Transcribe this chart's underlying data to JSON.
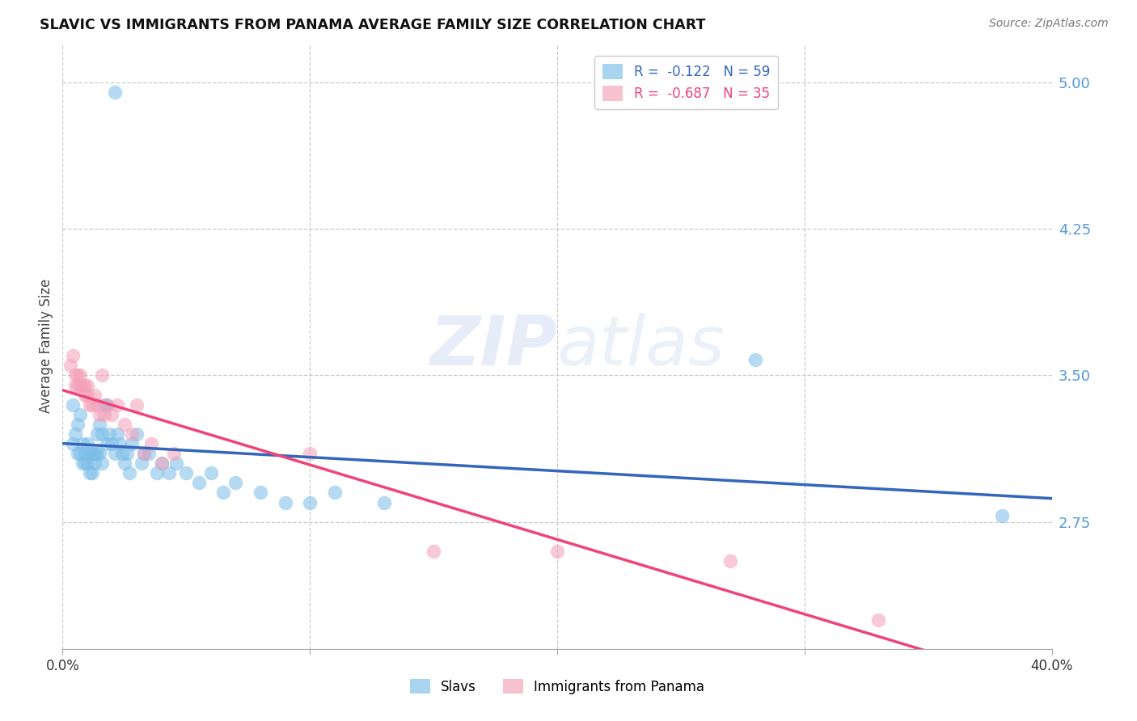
{
  "title": "SLAVIC VS IMMIGRANTS FROM PANAMA AVERAGE FAMILY SIZE CORRELATION CHART",
  "source": "Source: ZipAtlas.com",
  "ylabel": "Average Family Size",
  "yticks": [
    2.75,
    3.5,
    4.25,
    5.0
  ],
  "xtick_positions": [
    0.0,
    0.1,
    0.2,
    0.3,
    0.4
  ],
  "xmin": 0.0,
  "xmax": 0.4,
  "ymin": 2.1,
  "ymax": 5.2,
  "blue_color": "#7bbde8",
  "pink_color": "#f4a0b8",
  "blue_line_color": "#3366bb",
  "pink_line_color": "#ee4477",
  "grid_color": "#cccccc",
  "right_tick_color": "#5599dd",
  "legend_blue_r": "-0.122",
  "legend_blue_n": "59",
  "legend_pink_r": "-0.687",
  "legend_pink_n": "35",
  "slavs_x": [
    0.021,
    0.004,
    0.004,
    0.005,
    0.006,
    0.006,
    0.007,
    0.007,
    0.008,
    0.008,
    0.009,
    0.009,
    0.01,
    0.01,
    0.011,
    0.011,
    0.012,
    0.012,
    0.013,
    0.013,
    0.014,
    0.014,
    0.015,
    0.015,
    0.016,
    0.016,
    0.017,
    0.018,
    0.018,
    0.019,
    0.02,
    0.021,
    0.022,
    0.023,
    0.024,
    0.025,
    0.026,
    0.027,
    0.028,
    0.03,
    0.032,
    0.033,
    0.035,
    0.038,
    0.04,
    0.043,
    0.046,
    0.05,
    0.055,
    0.06,
    0.065,
    0.07,
    0.08,
    0.09,
    0.1,
    0.11,
    0.13,
    0.28,
    0.38
  ],
  "slavs_y": [
    4.95,
    3.35,
    3.15,
    3.2,
    3.25,
    3.1,
    3.3,
    3.1,
    3.05,
    3.15,
    3.1,
    3.05,
    3.15,
    3.05,
    3.1,
    3.0,
    3.1,
    3.0,
    3.1,
    3.05,
    3.2,
    3.1,
    3.25,
    3.1,
    3.2,
    3.05,
    3.35,
    3.35,
    3.15,
    3.2,
    3.15,
    3.1,
    3.2,
    3.15,
    3.1,
    3.05,
    3.1,
    3.0,
    3.15,
    3.2,
    3.05,
    3.1,
    3.1,
    3.0,
    3.05,
    3.0,
    3.05,
    3.0,
    2.95,
    3.0,
    2.9,
    2.95,
    2.9,
    2.85,
    2.85,
    2.9,
    2.85,
    3.58,
    2.78
  ],
  "panama_x": [
    0.003,
    0.004,
    0.005,
    0.005,
    0.006,
    0.006,
    0.007,
    0.007,
    0.008,
    0.009,
    0.009,
    0.01,
    0.01,
    0.011,
    0.012,
    0.013,
    0.014,
    0.015,
    0.016,
    0.017,
    0.018,
    0.02,
    0.022,
    0.025,
    0.028,
    0.03,
    0.033,
    0.036,
    0.04,
    0.045,
    0.1,
    0.15,
    0.2,
    0.27,
    0.33
  ],
  "panama_y": [
    3.55,
    3.6,
    3.5,
    3.45,
    3.5,
    3.45,
    3.45,
    3.5,
    3.45,
    3.45,
    3.4,
    3.45,
    3.4,
    3.35,
    3.35,
    3.4,
    3.35,
    3.3,
    3.5,
    3.3,
    3.35,
    3.3,
    3.35,
    3.25,
    3.2,
    3.35,
    3.1,
    3.15,
    3.05,
    3.1,
    3.1,
    2.6,
    2.6,
    2.55,
    2.25
  ]
}
